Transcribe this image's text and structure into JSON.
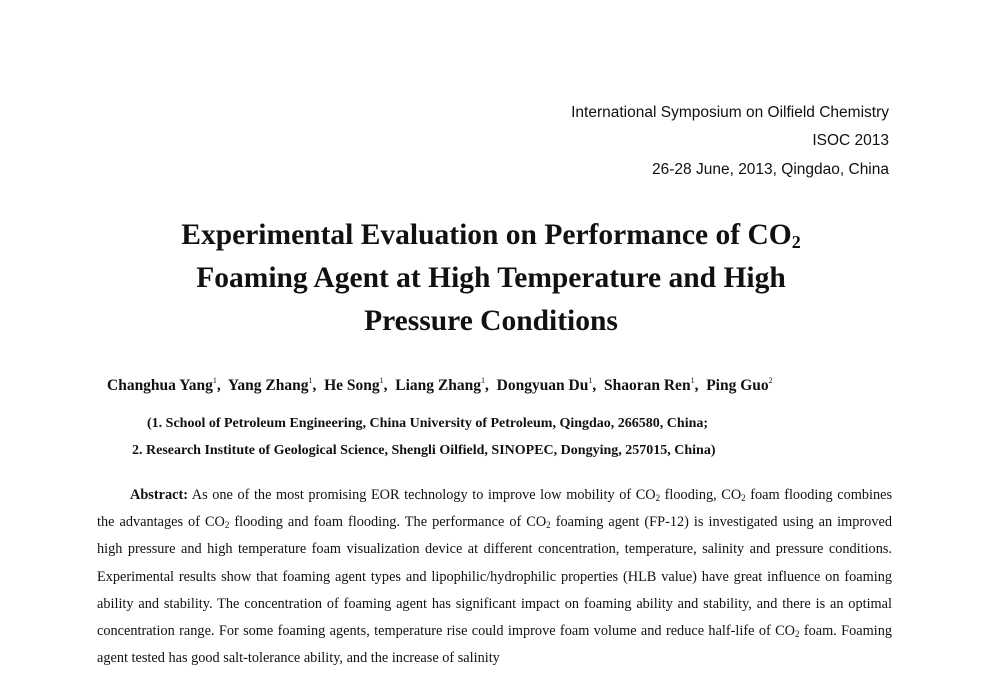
{
  "header": {
    "conference": "International Symposium on Oilfield Chemistry",
    "acronym": "ISOC 2013",
    "date_location": "26-28 June, 2013, Qingdao, China"
  },
  "title": {
    "line1_prefix": "Experimental Evaluation on Performance of CO",
    "line1_sub": "2",
    "line2": "Foaming Agent at High Temperature and High",
    "line3": "Pressure Conditions"
  },
  "authors": [
    {
      "name": "Changhua Yang",
      "aff": "1"
    },
    {
      "name": "Yang Zhang",
      "aff": "1"
    },
    {
      "name": "He Song",
      "aff": "1"
    },
    {
      "name": "Liang Zhang",
      "aff": "1"
    },
    {
      "name": "Dongyuan Du",
      "aff": "1"
    },
    {
      "name": "Shaoran Ren",
      "aff": "1"
    },
    {
      "name": "Ping Guo",
      "aff": "2"
    }
  ],
  "affiliations": {
    "line1": "(1. School of Petroleum Engineering, China University of Petroleum, Qingdao, 266580, China;",
    "line2": "2. Research Institute of Geological Science, Shengli Oilfield, SINOPEC, Dongying, 257015, China)"
  },
  "abstract": {
    "label": "Abstract:",
    "seg1": " As one of the most promising EOR technology to improve low mobility of CO",
    "seg2": " flooding, CO",
    "seg3": " foam flooding combines the advantages of CO",
    "seg4": " flooding and foam flooding. The performance of CO",
    "seg5": " foaming agent (FP-12) is investigated using an improved high pressure and high temperature foam visualization device at different concentration, temperature, salinity and pressure conditions. Experimental results show that foaming agent types and lipophilic/hydrophilic properties (HLB value) have great influence on foaming ability and stability. The concentration of foaming agent has significant impact on foaming ability and stability, and there is an optimal concentration range. For some foaming agents, temperature rise could improve foam volume and reduce half-life of CO",
    "seg6": " foam. Foaming agent tested has good salt-tolerance ability, and the increase of salinity",
    "sub": "2"
  }
}
